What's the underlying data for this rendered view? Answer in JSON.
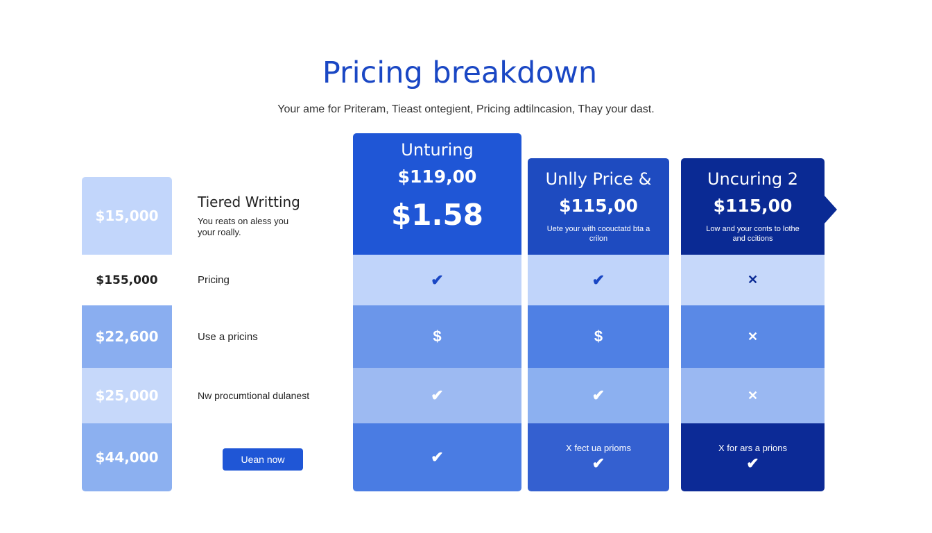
{
  "header": {
    "title": "Pricing breakdown",
    "subtitle": "Your ame for Priteram, Tieast ontegient, Pricing adtilncasion, Thay your dast."
  },
  "left_values": [
    "$15,000",
    "$155,000",
    "$22,600",
    "$25,000",
    "$44,000"
  ],
  "features": {
    "title": "Tiered Writting",
    "desc": "You reats on aless you your roally.",
    "rows": [
      "Pricing",
      "Use a pricins",
      "Nw procumtional dulanest"
    ],
    "button": "Uean now"
  },
  "plans": [
    {
      "name": "Unturing",
      "price": "$119,00",
      "big": "$1.58",
      "color": "#1f56d6",
      "cells": [
        "check",
        "dollar",
        "check",
        "check"
      ],
      "last_text": ""
    },
    {
      "name": "Unlly Price &",
      "price": "$115,00",
      "desc": "Uete your with coouctatd bta a crilon",
      "color": "#1e4bc0",
      "cells": [
        "check",
        "dollar",
        "check",
        "check"
      ],
      "last_text": "X fect ua prioms"
    },
    {
      "name": "Uncuring 2",
      "price": "$115,00",
      "desc": "Low and your conts to lothe and ccitions",
      "color": "#0a2a94",
      "cells": [
        "x",
        "x",
        "x",
        "check"
      ],
      "last_text": "X for ars a prions"
    }
  ],
  "icons": {
    "check": "✔",
    "x": "✕",
    "dollar": "$"
  }
}
